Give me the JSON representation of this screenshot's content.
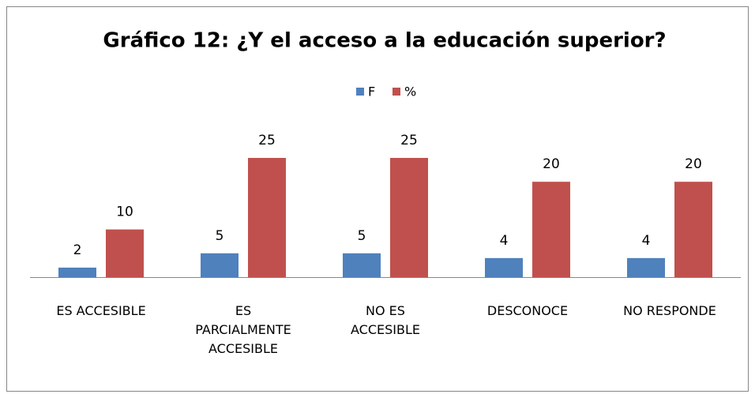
{
  "chart_data": {
    "type": "bar",
    "title": "Gráfico 12: ¿Y el acceso a la educación superior?",
    "categories": [
      "ES ACCESIBLE",
      "ES PARCIALMENTE ACCESIBLE",
      "NO ES ACCESIBLE",
      "DESCONOCE",
      "NO RESPONDE"
    ],
    "series": [
      {
        "name": "F",
        "color": "#4f81bd",
        "values": [
          2,
          5,
          5,
          4,
          4
        ]
      },
      {
        "name": "%",
        "color": "#c0504d",
        "values": [
          10,
          25,
          25,
          20,
          20
        ]
      }
    ],
    "legend": "top"
  }
}
